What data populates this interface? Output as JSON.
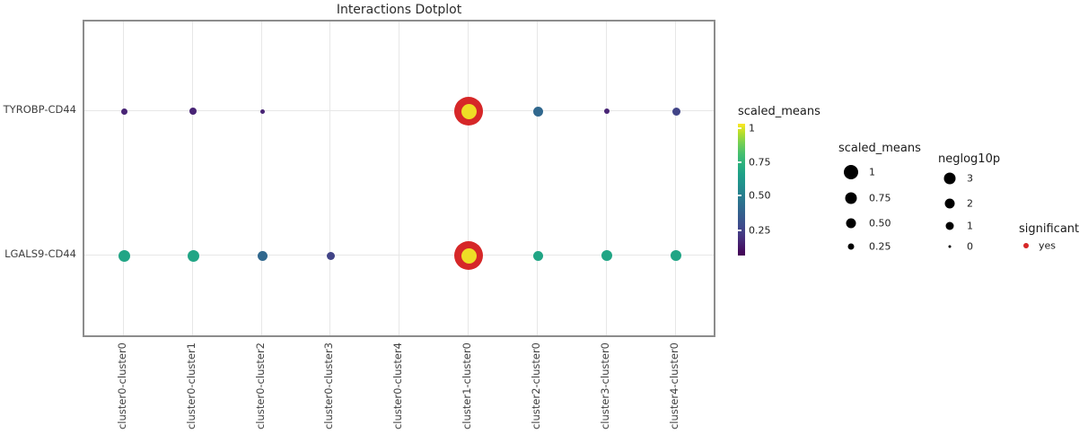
{
  "title": "Interactions Dotplot",
  "rows": [
    "TYROBP-CD44",
    "LGALS9-CD44"
  ],
  "columns": [
    "cluster0-cluster0",
    "cluster0-cluster1",
    "cluster0-cluster2",
    "cluster0-cluster3",
    "cluster0-cluster4",
    "cluster1-cluster0",
    "cluster2-cluster0",
    "cluster3-cluster0",
    "cluster4-cluster0"
  ],
  "dots": [
    {
      "row": 0,
      "col": 0,
      "diameter": 7,
      "color": "#482475",
      "significant": false
    },
    {
      "row": 0,
      "col": 1,
      "diameter": 8,
      "color": "#482475",
      "significant": false
    },
    {
      "row": 0,
      "col": 2,
      "diameter": 5,
      "color": "#482475",
      "significant": false
    },
    {
      "row": 0,
      "col": 5,
      "diameter": 17,
      "color": "#eedd26",
      "significant": true
    },
    {
      "row": 0,
      "col": 6,
      "diameter": 11,
      "color": "#31688e",
      "significant": false
    },
    {
      "row": 0,
      "col": 7,
      "diameter": 6,
      "color": "#482475",
      "significant": false
    },
    {
      "row": 0,
      "col": 8,
      "diameter": 9,
      "color": "#414487",
      "significant": false
    },
    {
      "row": 1,
      "col": 0,
      "diameter": 13,
      "color": "#21a585",
      "significant": false
    },
    {
      "row": 1,
      "col": 1,
      "diameter": 13,
      "color": "#21a585",
      "significant": false
    },
    {
      "row": 1,
      "col": 2,
      "diameter": 11,
      "color": "#31688e",
      "significant": false
    },
    {
      "row": 1,
      "col": 3,
      "diameter": 9,
      "color": "#414487",
      "significant": false
    },
    {
      "row": 1,
      "col": 5,
      "diameter": 17,
      "color": "#eedd26",
      "significant": true
    },
    {
      "row": 1,
      "col": 6,
      "diameter": 11,
      "color": "#21a585",
      "significant": false
    },
    {
      "row": 1,
      "col": 7,
      "diameter": 12,
      "color": "#21a585",
      "significant": false
    },
    {
      "row": 1,
      "col": 8,
      "diameter": 12,
      "color": "#21a585",
      "significant": false
    }
  ],
  "legends": {
    "colorbar": {
      "title": "scaled_means",
      "ticks": [
        {
          "label": "1",
          "offset": 5
        },
        {
          "label": "0.75",
          "offset": 43
        },
        {
          "label": "0.50",
          "offset": 80
        },
        {
          "label": "0.25",
          "offset": 119
        }
      ]
    },
    "size_scaled_means": {
      "title": "scaled_means",
      "items": [
        {
          "label": "1",
          "size": 16
        },
        {
          "label": "0.75",
          "size": 13
        },
        {
          "label": "0.50",
          "size": 11
        },
        {
          "label": "0.25",
          "size": 7
        }
      ]
    },
    "size_neglog10p": {
      "title": "neglog10p",
      "items": [
        {
          "label": "3",
          "size": 13
        },
        {
          "label": "2",
          "size": 11
        },
        {
          "label": "1",
          "size": 9
        },
        {
          "label": "0",
          "size": 3
        }
      ]
    },
    "significant": {
      "title": "significant",
      "items": [
        {
          "label": "yes",
          "color": "#d62728",
          "size": 6
        }
      ]
    }
  },
  "colors": {
    "significant_ring": "#d62728",
    "viridis_low": "#440154",
    "viridis_high": "#fde725",
    "grid": "#e7e7e7",
    "plot_border": "#8c8c8c"
  },
  "chart_data": {
    "type": "scatter",
    "subtype": "dotplot",
    "title": "Interactions Dotplot",
    "x_categories": [
      "cluster0-cluster0",
      "cluster0-cluster1",
      "cluster0-cluster2",
      "cluster0-cluster3",
      "cluster0-cluster4",
      "cluster1-cluster0",
      "cluster2-cluster0",
      "cluster3-cluster0",
      "cluster4-cluster0"
    ],
    "y_categories": [
      "TYROBP-CD44",
      "LGALS9-CD44"
    ],
    "series": [
      {
        "name": "TYROBP-CD44",
        "scaled_means": [
          0.1,
          0.1,
          0.08,
          null,
          null,
          1.0,
          0.45,
          0.1,
          0.2
        ],
        "significant": [
          false,
          false,
          false,
          null,
          null,
          true,
          false,
          false,
          false
        ]
      },
      {
        "name": "LGALS9-CD44",
        "scaled_means": [
          0.6,
          0.6,
          0.45,
          0.22,
          null,
          1.0,
          0.6,
          0.6,
          0.6
        ],
        "significant": [
          false,
          false,
          false,
          false,
          null,
          true,
          false,
          false,
          false
        ]
      }
    ],
    "color_scale": {
      "palette": "viridis",
      "label": "scaled_means",
      "tick_values": [
        1,
        0.75,
        0.5,
        0.25
      ],
      "range": [
        0,
        1
      ]
    },
    "size_scales": [
      {
        "label": "scaled_means",
        "tick_values": [
          1,
          0.75,
          0.5,
          0.25
        ]
      },
      {
        "label": "neglog10p",
        "tick_values": [
          3,
          2,
          1,
          0
        ]
      }
    ],
    "highlight_legend": {
      "label": "significant",
      "values": [
        "yes"
      ],
      "color": "#d62728"
    },
    "grid": true,
    "legend_position": "right"
  }
}
